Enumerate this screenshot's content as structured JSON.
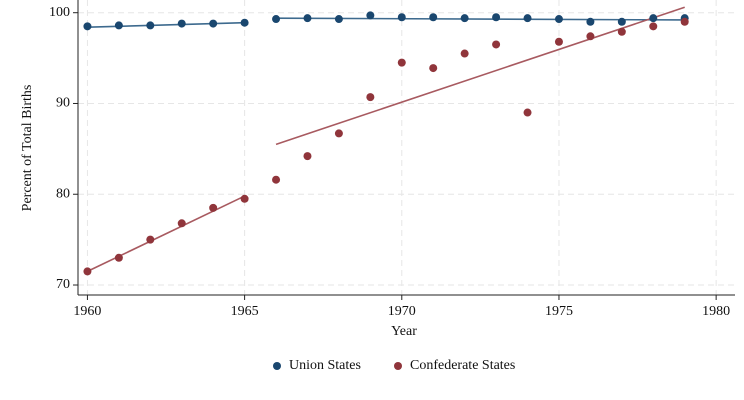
{
  "chart_data": {
    "type": "scatter",
    "x_label": "Year",
    "y_label": "Percent of Total Births",
    "x": [
      1960,
      1961,
      1962,
      1963,
      1964,
      1965,
      1966,
      1967,
      1968,
      1969,
      1970,
      1971,
      1972,
      1973,
      1974,
      1975,
      1976,
      1977,
      1978,
      1979
    ],
    "series": [
      {
        "name": "Union States",
        "color": "#1a476f",
        "values": [
          98.5,
          98.6,
          98.6,
          98.8,
          98.8,
          98.9,
          99.3,
          99.4,
          99.3,
          99.7,
          99.5,
          99.5,
          99.4,
          99.5,
          99.4,
          99.3,
          99.0,
          99.0,
          99.4,
          99.4
        ]
      },
      {
        "name": "Confederate States",
        "color": "#90353b",
        "values": [
          71.5,
          73.0,
          75.0,
          76.8,
          78.5,
          79.5,
          81.6,
          84.2,
          86.7,
          90.7,
          94.5,
          93.9,
          95.5,
          96.5,
          89.0,
          96.8,
          97.4,
          97.9,
          98.5,
          99.0
        ]
      }
    ],
    "fits": [
      {
        "color": "#3d6a8e",
        "x": [
          1960,
          1965
        ],
        "values": [
          98.4,
          98.9
        ]
      },
      {
        "color": "#3d6a8e",
        "x": [
          1966,
          1979
        ],
        "values": [
          99.4,
          99.2
        ]
      },
      {
        "color": "#a85a60",
        "x": [
          1960,
          1965
        ],
        "values": [
          71.5,
          79.8
        ]
      },
      {
        "color": "#a85a60",
        "x": [
          1966,
          1979
        ],
        "values": [
          85.5,
          100.6
        ]
      }
    ],
    "xlim": [
      1959.7,
      1980.6
    ],
    "ylim": [
      68.9,
      101.4
    ],
    "xticks": [
      1960,
      1965,
      1970,
      1975,
      1980
    ],
    "yticks": [
      70,
      80,
      90,
      100
    ],
    "grid": true,
    "legend": "bottom"
  }
}
